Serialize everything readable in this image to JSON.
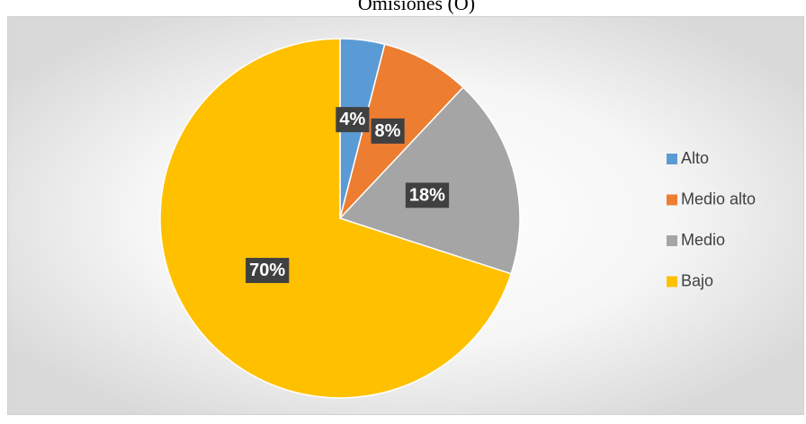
{
  "chart_data": {
    "type": "pie",
    "title": "Omisiones (O)",
    "categories": [
      "Alto",
      "Medio alto",
      "Medio",
      "Bajo"
    ],
    "values": [
      4,
      8,
      18,
      70
    ],
    "value_labels": [
      "4%",
      "8%",
      "18%",
      "70%"
    ],
    "colors": [
      "#5b9bd5",
      "#ed7d31",
      "#a5a5a5",
      "#ffc000"
    ],
    "legend": "right"
  }
}
